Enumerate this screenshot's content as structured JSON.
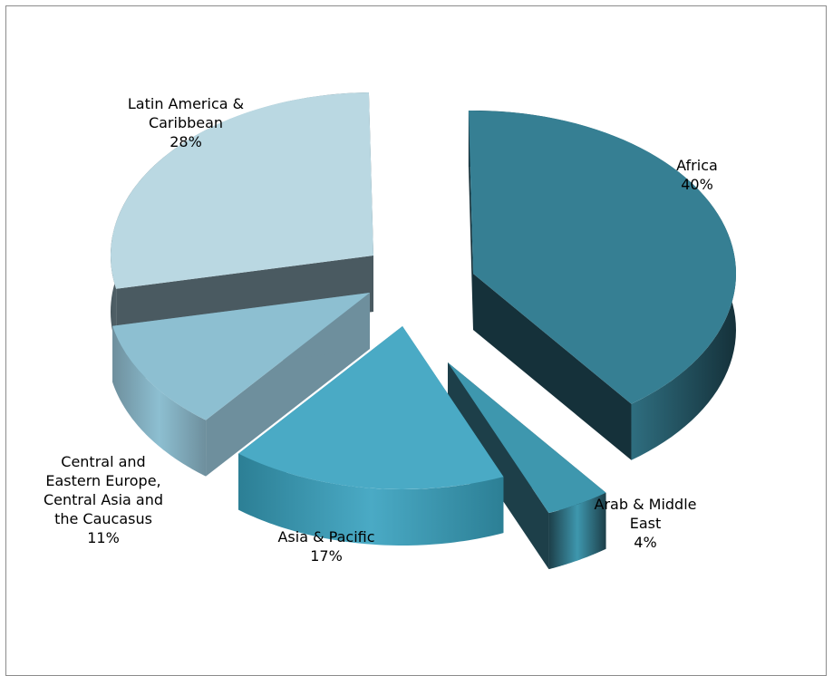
{
  "chart_data": {
    "type": "pie",
    "style": "3d-exploded",
    "title": "",
    "legend": "none",
    "slices": [
      {
        "name": "Africa",
        "value": 40,
        "label_lines": [
          "Africa",
          "40%"
        ],
        "top_color": "#367f93",
        "side_color": "#15313a"
      },
      {
        "name": "Arab & Middle East",
        "value": 4,
        "label_lines": [
          "Arab & Middle",
          "East",
          "4%"
        ],
        "top_color": "#3e97ae",
        "side_color": "#1d3f49"
      },
      {
        "name": "Asia & Pacific",
        "value": 17,
        "label_lines": [
          "Asia & Pacific",
          "17%"
        ],
        "top_color": "#4aaac5",
        "side_color": "#2c7f95"
      },
      {
        "name": "Central and Eastern Europe, Central Asia and the Caucasus",
        "value": 11,
        "label_lines": [
          "Central and",
          "Eastern Europe,",
          "Central Asia and",
          "the Caucasus",
          "11%"
        ],
        "top_color": "#8dbfd1",
        "side_color": "#6e8f9d"
      },
      {
        "name": "Latin America & Caribbean",
        "value": 28,
        "label_lines": [
          "Latin America &",
          "Caribbean",
          "28%"
        ],
        "top_color": "#bad8e2",
        "side_color": "#4a5a61"
      }
    ]
  }
}
